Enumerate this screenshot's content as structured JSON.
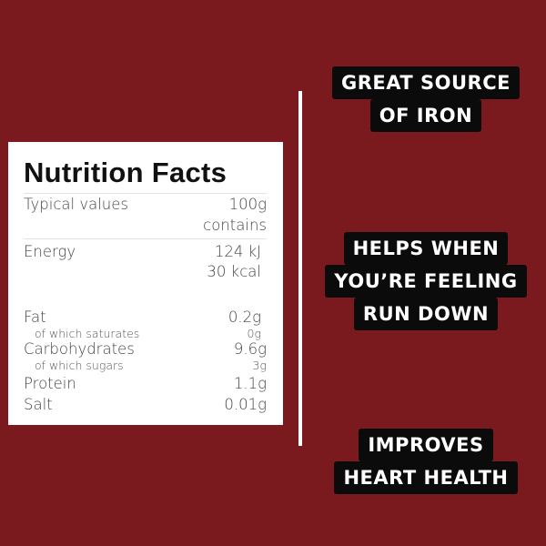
{
  "background_color": "#7a1a1f",
  "nutrition": {
    "title": "Nutrition Facts",
    "header": {
      "label": "Typical values",
      "value_line1": "100g",
      "value_line2": "contains"
    },
    "energy": {
      "label": "Energy",
      "kj": "124 kJ",
      "kcal": "30 kcal"
    },
    "rows": [
      {
        "label": "Fat",
        "value": "0.2g"
      },
      {
        "label": "of which saturates",
        "value": "0g"
      },
      {
        "label": "Carbohydrates",
        "value": "9.6g"
      },
      {
        "label": "of which sugars",
        "value": "3g"
      },
      {
        "label": "Protein",
        "value": "1.1g"
      },
      {
        "label": "Salt",
        "value": "0.01g"
      }
    ]
  },
  "claims": [
    {
      "lines": [
        "GREAT SOURCE",
        "OF IRON"
      ]
    },
    {
      "lines": [
        "HELPS WHEN",
        "YOU’RE FEELING",
        "RUN DOWN"
      ]
    },
    {
      "lines": [
        "IMPROVES",
        "HEART HEALTH"
      ]
    }
  ]
}
